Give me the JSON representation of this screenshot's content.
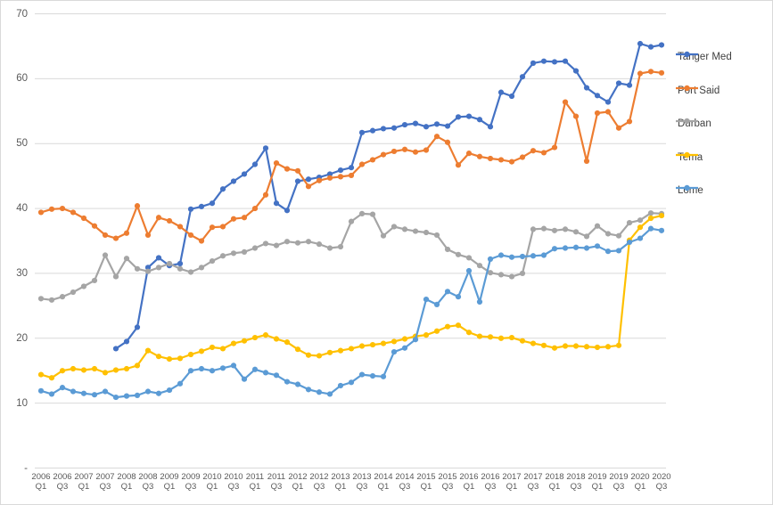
{
  "chart": {
    "background": "#ffffff",
    "border_color": "#d9d9d9",
    "grid_color": "#d9d9d9",
    "tick_text_color": "#595959",
    "legend_text_color": "#404040",
    "y_ticks": [
      {
        "v": 70,
        "label": "70"
      },
      {
        "v": 60,
        "label": "60"
      },
      {
        "v": 50,
        "label": "50"
      },
      {
        "v": 40,
        "label": "40"
      },
      {
        "v": 30,
        "label": "30"
      },
      {
        "v": 20,
        "label": "20"
      },
      {
        "v": 10,
        "label": "10"
      },
      {
        "v": 0,
        "label": "-"
      }
    ]
  },
  "chart_data": {
    "type": "line",
    "title": "",
    "xlabel": "",
    "ylabel": "",
    "ylim": [
      0,
      70
    ],
    "grid": true,
    "legend_position": "right",
    "x_unit": "quarter",
    "x_start": "2006 Q1",
    "x_end": "2020 Q3",
    "points_per_tick": 2,
    "x_tick_labels": [
      "2006 Q1",
      "2006 Q3",
      "2007 Q1",
      "2007 Q3",
      "2008 Q1",
      "2008 Q3",
      "2009 Q1",
      "2009 Q3",
      "2010 Q1",
      "2010 Q3",
      "2011 Q1",
      "2011 Q3",
      "2012 Q1",
      "2012 Q3",
      "2013 Q1",
      "2013 Q3",
      "2014 Q1",
      "2014 Q3",
      "2015 Q1",
      "2015 Q3",
      "2016 Q1",
      "2016 Q3",
      "2017 Q1",
      "2017 Q3",
      "2018 Q1",
      "2018 Q3",
      "2019 Q1",
      "2019 Q3",
      "2020 Q1",
      "2020 Q3"
    ],
    "series": [
      {
        "name": "Tanger Med",
        "color": "#4472C4",
        "values": [
          null,
          null,
          null,
          null,
          null,
          null,
          null,
          18.4,
          19.5,
          21.7,
          30.9,
          32.4,
          31.2,
          31.5,
          39.9,
          40.3,
          40.8,
          43.0,
          44.2,
          45.3,
          46.8,
          49.3,
          40.8,
          39.7,
          44.2,
          44.5,
          44.8,
          45.3,
          45.9,
          46.3,
          51.7,
          52.0,
          52.3,
          52.4,
          52.9,
          53.1,
          52.6,
          53.0,
          52.7,
          54.1,
          54.2,
          53.7,
          52.6,
          57.9,
          57.3,
          60.3,
          62.4,
          62.7,
          62.6,
          62.7,
          61.2,
          58.6,
          57.4,
          56.4,
          59.3,
          59.0,
          65.4,
          64.9,
          65.2
        ]
      },
      {
        "name": "Port Said",
        "color": "#ED7D31",
        "values": [
          39.4,
          39.9,
          40.0,
          39.4,
          38.5,
          37.3,
          35.9,
          35.4,
          36.2,
          40.4,
          35.9,
          38.6,
          38.1,
          37.2,
          35.9,
          35.0,
          37.1,
          37.2,
          38.4,
          38.6,
          40.0,
          42.1,
          47.0,
          46.1,
          45.8,
          43.4,
          44.3,
          44.7,
          44.9,
          45.1,
          46.8,
          47.5,
          48.3,
          48.8,
          49.1,
          48.7,
          49.0,
          51.1,
          50.2,
          46.7,
          48.5,
          48.0,
          47.7,
          47.5,
          47.2,
          47.9,
          48.9,
          48.6,
          49.4,
          56.4,
          54.2,
          47.3,
          54.7,
          54.9,
          52.4,
          53.4,
          60.8,
          61.1,
          60.9
        ]
      },
      {
        "name": "Durban",
        "color": "#A5A5A5",
        "values": [
          26.1,
          25.9,
          26.4,
          27.1,
          28.0,
          28.9,
          32.8,
          29.5,
          32.3,
          30.7,
          30.3,
          30.9,
          31.5,
          30.7,
          30.2,
          30.9,
          31.9,
          32.7,
          33.1,
          33.3,
          33.9,
          34.6,
          34.3,
          34.9,
          34.7,
          34.9,
          34.5,
          33.9,
          34.1,
          38.0,
          39.2,
          39.1,
          35.8,
          37.2,
          36.8,
          36.5,
          36.3,
          35.9,
          33.7,
          32.9,
          32.4,
          31.2,
          30.1,
          29.8,
          29.5,
          30.0,
          36.8,
          36.9,
          36.6,
          36.8,
          36.4,
          35.7,
          37.3,
          36.1,
          35.8,
          37.8,
          38.2,
          39.3,
          39.2
        ]
      },
      {
        "name": "Tema",
        "color": "#FFC000",
        "values": [
          14.4,
          13.9,
          15.0,
          15.3,
          15.1,
          15.3,
          14.7,
          15.1,
          15.3,
          15.8,
          18.1,
          17.2,
          16.8,
          16.9,
          17.5,
          18.0,
          18.6,
          18.4,
          19.2,
          19.6,
          20.1,
          20.5,
          19.9,
          19.4,
          18.3,
          17.4,
          17.3,
          17.8,
          18.1,
          18.4,
          18.8,
          19.0,
          19.2,
          19.5,
          19.9,
          20.3,
          20.5,
          21.1,
          21.8,
          22.0,
          20.9,
          20.3,
          20.2,
          20.0,
          20.1,
          19.6,
          19.2,
          18.9,
          18.5,
          18.8,
          18.8,
          18.7,
          18.6,
          18.7,
          18.9,
          35.1,
          37.1,
          38.5,
          38.9
        ]
      },
      {
        "name": "Lome",
        "color": "#5B9BD5",
        "values": [
          11.9,
          11.4,
          12.4,
          11.8,
          11.5,
          11.3,
          11.8,
          10.9,
          11.1,
          11.2,
          11.8,
          11.5,
          12.0,
          13.0,
          15.0,
          15.3,
          15.0,
          15.4,
          15.8,
          13.7,
          15.2,
          14.7,
          14.3,
          13.3,
          12.9,
          12.1,
          11.7,
          11.4,
          12.7,
          13.2,
          14.4,
          14.2,
          14.1,
          17.9,
          18.5,
          19.8,
          26.0,
          25.2,
          27.2,
          26.4,
          30.4,
          25.6,
          32.2,
          32.8,
          32.5,
          32.6,
          32.7,
          32.8,
          33.8,
          33.9,
          34.0,
          33.9,
          34.2,
          33.4,
          33.5,
          34.8,
          35.4,
          36.9,
          36.6
        ]
      }
    ]
  }
}
